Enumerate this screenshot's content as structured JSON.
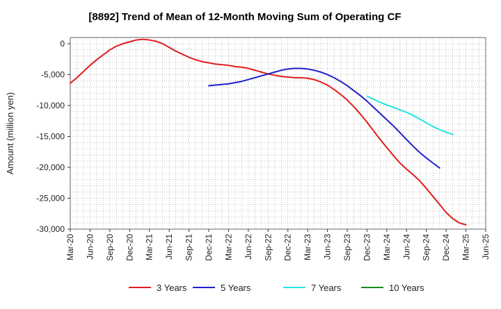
{
  "chart_data": {
    "type": "line",
    "title": "[8892]  Trend of Mean of 12-Month Moving Sum of Operating CF",
    "xlabel": "",
    "ylabel": "Amount (million yen)",
    "ylim": [
      -30000,
      1000
    ],
    "yticks": [
      0,
      -5000,
      -10000,
      -15000,
      -20000,
      -25000,
      -30000
    ],
    "ytick_labels": [
      "0",
      "-5,000",
      "-10,000",
      "-15,000",
      "-20,000",
      "-25,000",
      "-30,000"
    ],
    "xticks": [
      "Mar-20",
      "Jun-20",
      "Sep-20",
      "Dec-20",
      "Mar-21",
      "Jun-21",
      "Sep-21",
      "Dec-21",
      "Mar-22",
      "Jun-22",
      "Sep-22",
      "Dec-22",
      "Mar-23",
      "Jun-23",
      "Sep-23",
      "Dec-23",
      "Mar-24",
      "Jun-24",
      "Sep-24",
      "Dec-24",
      "Mar-25",
      "Jun-25"
    ],
    "grid": true,
    "legend_position": "bottom",
    "series": [
      {
        "name": "3 Years",
        "color": "#e31a1c",
        "start_index": 0,
        "values": [
          -6400,
          -5500,
          -4500,
          -3500,
          -2600,
          -1800,
          -1000,
          -400,
          0,
          300,
          600,
          700,
          600,
          400,
          0,
          -600,
          -1200,
          -1700,
          -2200,
          -2600,
          -2900,
          -3100,
          -3300,
          -3400,
          -3500,
          -3700,
          -3800,
          -4000,
          -4300,
          -4600,
          -4900,
          -5100,
          -5300,
          -5400,
          -5500,
          -5500,
          -5600,
          -5800,
          -6200,
          -6700,
          -7400,
          -8200,
          -9100,
          -10200,
          -11400,
          -12700,
          -14100,
          -15500,
          -16800,
          -18100,
          -19300,
          -20300,
          -21200,
          -22200,
          -23400,
          -24700,
          -26000,
          -27300,
          -28300,
          -29000,
          -29300
        ]
      },
      {
        "name": "5 Years",
        "color": "#1f1fcc",
        "start_index": 21,
        "values": [
          -6800,
          -6700,
          -6600,
          -6500,
          -6300,
          -6100,
          -5800,
          -5500,
          -5200,
          -4900,
          -4600,
          -4300,
          -4100,
          -4000,
          -4000,
          -4100,
          -4300,
          -4600,
          -5000,
          -5500,
          -6100,
          -6800,
          -7600,
          -8400,
          -9300,
          -10300,
          -11300,
          -12300,
          -13300,
          -14400,
          -15500,
          -16600,
          -17600,
          -18500,
          -19300,
          -20100
        ]
      },
      {
        "name": "7 Years",
        "color": "#22e5e5",
        "start_index": 45,
        "values": [
          -8500,
          -9000,
          -9500,
          -9900,
          -10300,
          -10700,
          -11100,
          -11600,
          -12200,
          -12800,
          -13400,
          -13900,
          -14300,
          -14700
        ]
      },
      {
        "name": "10 Years",
        "color": "#1a8a1a",
        "start_index": 0,
        "values": []
      }
    ]
  }
}
